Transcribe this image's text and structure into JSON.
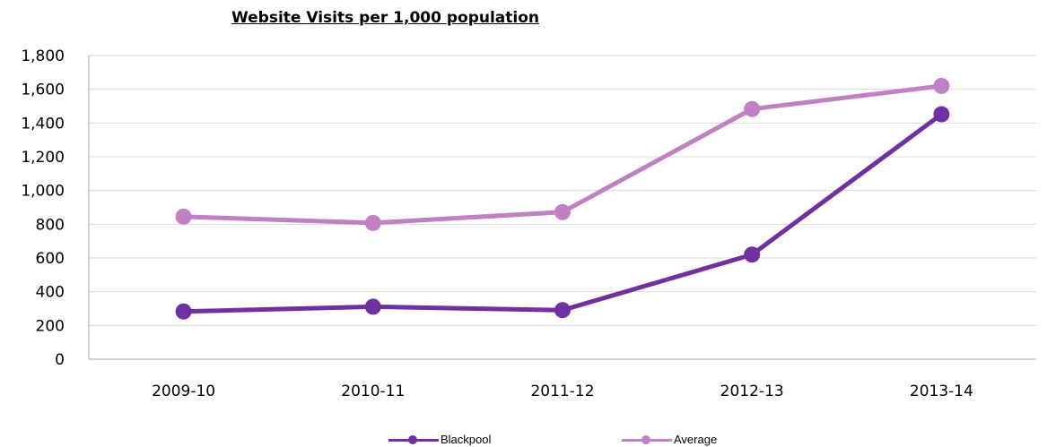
{
  "chart_data": {
    "type": "line",
    "title": "Website Visits per 1,000 population",
    "categories": [
      "2009-10",
      "2010-11",
      "2011-12",
      "2012-13",
      "2013-14"
    ],
    "series": [
      {
        "name": "Blackpool",
        "values": [
          283,
          311,
          291,
          620,
          1452
        ],
        "color": "#7030a0"
      },
      {
        "name": "Average",
        "values": [
          845,
          808,
          872,
          1483,
          1620
        ],
        "color": "#bf80c4"
      }
    ],
    "ylim": [
      0,
      1800
    ],
    "yticks": [
      "0",
      "200",
      "400",
      "600",
      "800",
      "1,000",
      "1,200",
      "1,400",
      "1,600",
      "1,800"
    ],
    "grid": true,
    "legend": "bottom"
  }
}
